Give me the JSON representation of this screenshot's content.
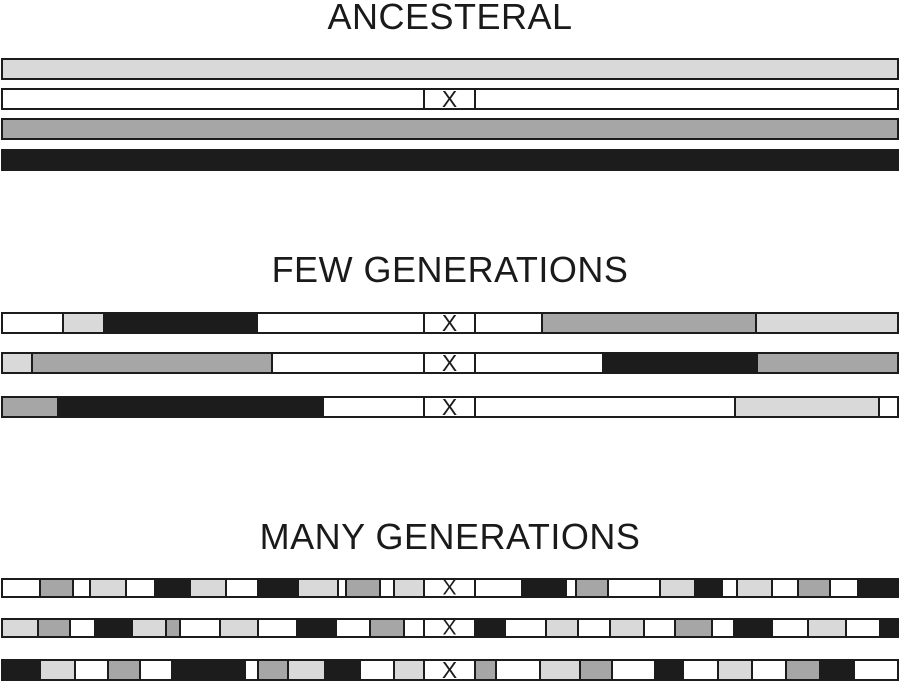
{
  "sections": {
    "ancestral": "ANCESTERAL",
    "few": "FEW GENERATIONS",
    "many": "MANY GENERATIONS"
  },
  "centromere_label": "X",
  "colors": {
    "white": "#ffffff",
    "light": "#d9d9d9",
    "mid": "#a6a6a6",
    "black": "#1c1c1c",
    "outline": "#1c1c1c"
  }
}
